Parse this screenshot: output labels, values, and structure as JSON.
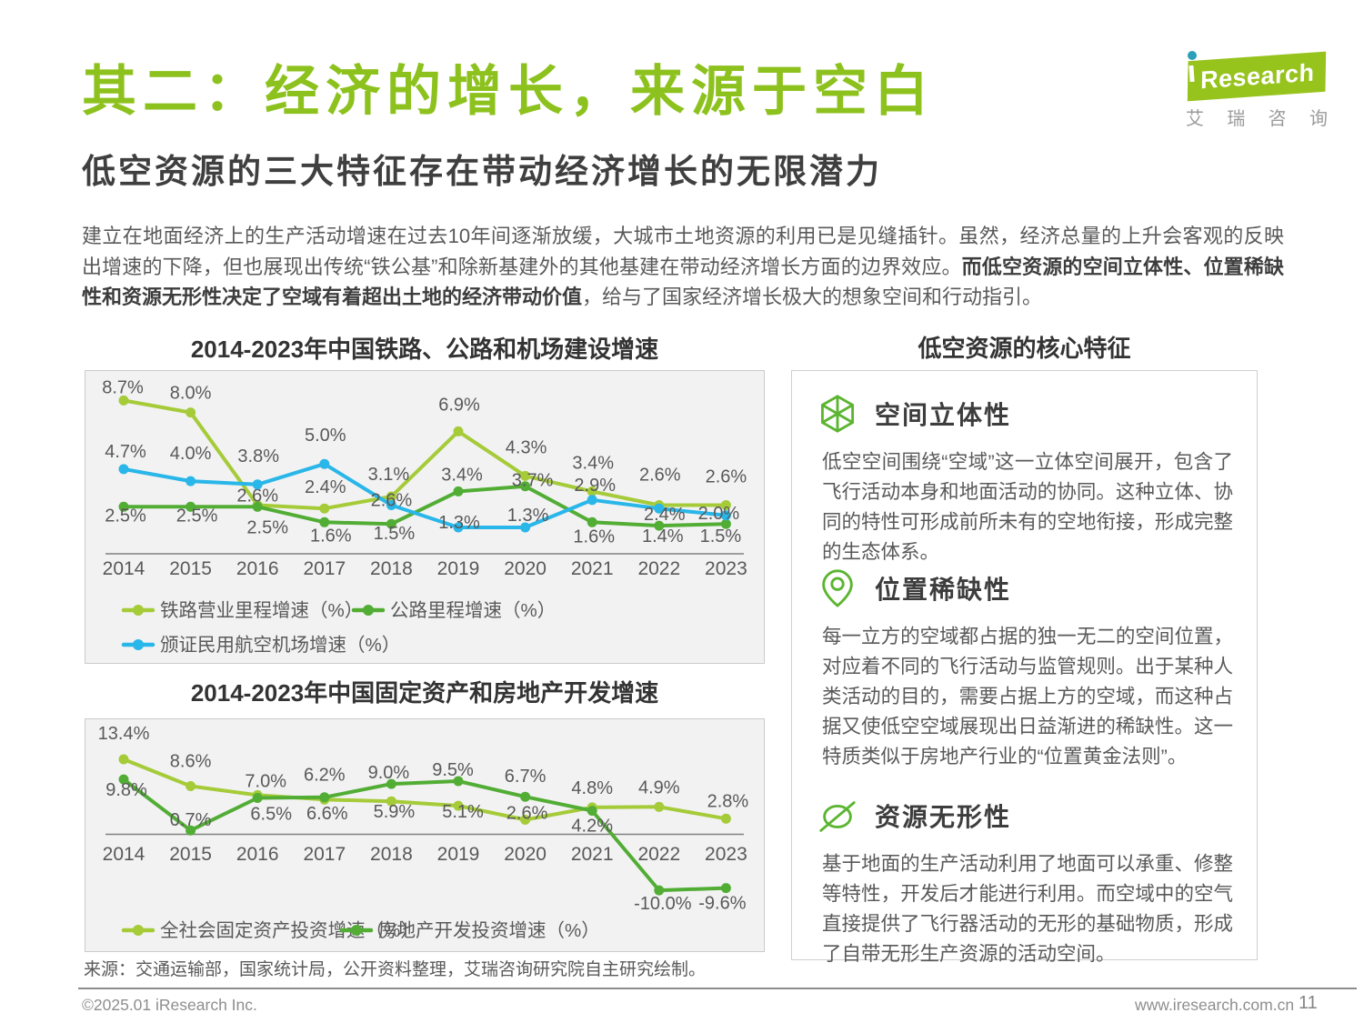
{
  "page": {
    "title": "其二：经济的增长，来源于空白",
    "subtitle": "低空资源的三大特征存在带动经济增长的无限潜力",
    "logo": {
      "brand": "Research",
      "cn_name": "艾瑞咨询"
    },
    "intro_segments": [
      {
        "text": "建立在地面经济上的生产活动增速在过去10年间逐渐放缓，大城市土地资源的利用已是见缝插针。虽然，经济总量的上升会客观的反映出增速的下降，但也展现出传统“铁公基”和除新基建外的其他基建在带动经济增长方面的边界效应。",
        "bold": false
      },
      {
        "text": "而低空资源的空间立体性、位置稀缺性和资源无形性决定了空域有着超出土地的经济带动价值",
        "bold": true
      },
      {
        "text": "，给与了国家经济增长极大的想象空间和行动指引。",
        "bold": false
      }
    ],
    "source": "来源：交通运输部，国家统计局，公开资料整理，艾瑞咨询研究院自主研究绘制。",
    "footer": {
      "copyright": "©2025.01 iResearch Inc.",
      "website": "www.iresearch.com.cn",
      "page_number": "11"
    }
  },
  "colors": {
    "title_green": "#8dc21e",
    "light_green": "#a5cb39",
    "dark_green": "#52ad35",
    "blue": "#29b6e8",
    "icon_green": "#5cb531",
    "label_gray": "#595959"
  },
  "chart_data": [
    {
      "type": "line",
      "title": "2014-2023年中国铁路、公路和机场建设增速",
      "categories": [
        "2014",
        "2015",
        "2016",
        "2017",
        "2018",
        "2019",
        "2020",
        "2021",
        "2022",
        "2023"
      ],
      "series": [
        {
          "name": "铁路营业里程增速（%）",
          "color": "#a5cb39",
          "values": [
            8.7,
            8.0,
            2.6,
            2.4,
            3.1,
            6.9,
            4.3,
            3.4,
            2.6,
            2.6
          ]
        },
        {
          "name": "公路里程增速（%）",
          "color": "#52ad35",
          "values": [
            2.5,
            2.5,
            2.5,
            1.6,
            1.5,
            3.4,
            3.7,
            1.6,
            1.4,
            1.5
          ]
        },
        {
          "name": "颁证民用航空机场增速（%）",
          "color": "#29b6e8",
          "values": [
            4.7,
            4.0,
            3.8,
            5.0,
            2.6,
            1.3,
            1.3,
            2.9,
            2.4,
            2.0
          ]
        }
      ],
      "unit": "%",
      "ylim": [
        0,
        10
      ],
      "grid": false,
      "legend_position": "bottom"
    },
    {
      "type": "line",
      "title": "2014-2023年中国固定资产和房地产开发增速",
      "categories": [
        "2014",
        "2015",
        "2016",
        "2017",
        "2018",
        "2019",
        "2020",
        "2021",
        "2022",
        "2023"
      ],
      "series": [
        {
          "name": "全社会固定资产投资增速（%）",
          "color": "#a5cb39",
          "values": [
            13.4,
            8.6,
            7.0,
            6.2,
            5.9,
            5.1,
            2.6,
            4.8,
            4.9,
            2.8
          ]
        },
        {
          "name": "房地产开发投资增速（%）",
          "color": "#52ad35",
          "values": [
            9.8,
            0.7,
            6.5,
            6.6,
            9.0,
            9.5,
            6.7,
            4.2,
            -10.0,
            -9.6
          ]
        }
      ],
      "unit": "%",
      "ylim": [
        -12,
        15
      ],
      "grid": false,
      "legend_position": "bottom"
    }
  ],
  "features": {
    "title": "低空资源的核心特征",
    "items": [
      {
        "icon": "cube-icon",
        "heading": "空间立体性",
        "body": "低空空间围绕“空域”这一立体空间展开，包含了飞行活动本身和地面活动的协同。这种立体、协同的特性可形成前所未有的空地衔接，形成完整的生态体系。"
      },
      {
        "icon": "pin-icon",
        "heading": "位置稀缺性",
        "body": "每一立方的空域都占据的独一无二的空间位置，对应着不同的飞行活动与监管规则。出于某种人类活动的目的，需要占据上方的空域，而这种占据又使低空空域展现出日益渐进的稀缺性。这一特质类似于房地产行业的“位置黄金法则”。"
      },
      {
        "icon": "invisible-icon",
        "heading": "资源无形性",
        "body": "基于地面的生产活动利用了地面可以承重、修整等特性，开发后才能进行利用。而空域中的空气直接提供了飞行器活动的无形的基础物质，形成了自带无形生产资源的活动空间。"
      }
    ]
  }
}
